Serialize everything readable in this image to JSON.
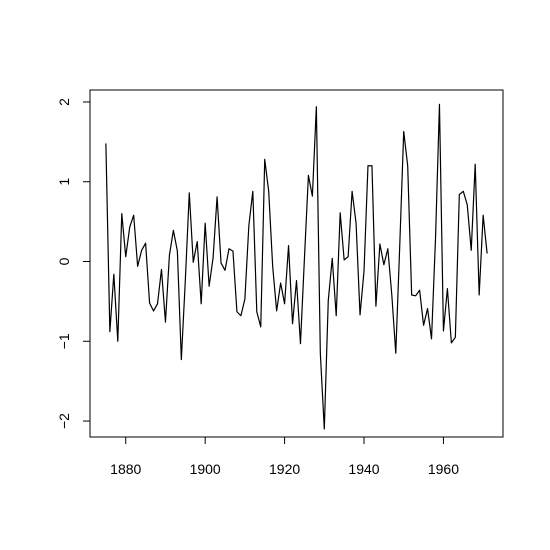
{
  "chart_data": {
    "type": "line",
    "title": "",
    "xlabel": "",
    "ylabel": "",
    "xlim": [
      1871,
      1975
    ],
    "ylim": [
      -2.2,
      2.15
    ],
    "xticks": [
      1880,
      1900,
      1920,
      1940,
      1960
    ],
    "xtick_labels": [
      "1880",
      "1900",
      "1920",
      "1940",
      "1960"
    ],
    "yticks": [
      -2,
      -1,
      0,
      1,
      2
    ],
    "ytick_labels": [
      "−2",
      "−1",
      "0",
      "1",
      "2"
    ],
    "grid": false,
    "legend": "none",
    "line_color": "#000000",
    "series": [
      {
        "x": [
          1875,
          1876,
          1877,
          1878,
          1879,
          1880,
          1881,
          1882,
          1883,
          1884,
          1885,
          1886,
          1887,
          1888,
          1889,
          1890,
          1891,
          1892,
          1893,
          1894,
          1895,
          1896,
          1897,
          1898,
          1899,
          1900,
          1901,
          1902,
          1903,
          1904,
          1905,
          1906,
          1907,
          1908,
          1909,
          1910,
          1911,
          1912,
          1913,
          1914,
          1915,
          1916,
          1917,
          1918,
          1919,
          1920,
          1921,
          1922,
          1923,
          1924,
          1925,
          1926,
          1927,
          1928,
          1929,
          1930,
          1931,
          1932,
          1933,
          1934,
          1935,
          1936,
          1937,
          1938,
          1939,
          1940,
          1941,
          1942,
          1943,
          1944,
          1945,
          1946,
          1947,
          1948,
          1949,
          1950,
          1951,
          1952,
          1953,
          1954,
          1955,
          1956,
          1957,
          1958,
          1959,
          1960,
          1961,
          1962,
          1963,
          1964,
          1965,
          1966,
          1967,
          1968,
          1969,
          1970,
          1971
        ],
        "y": [
          1.48,
          -0.88,
          -0.16,
          -1.0,
          0.6,
          0.06,
          0.43,
          0.58,
          -0.06,
          0.14,
          0.23,
          -0.52,
          -0.62,
          -0.53,
          -0.1,
          -0.76,
          0.08,
          0.39,
          0.13,
          -1.23,
          -0.24,
          0.86,
          -0.01,
          0.25,
          -0.53,
          0.48,
          -0.31,
          0.05,
          0.81,
          -0.02,
          -0.11,
          0.16,
          0.13,
          -0.63,
          -0.68,
          -0.47,
          0.45,
          0.88,
          -0.63,
          -0.82,
          1.28,
          0.88,
          -0.06,
          -0.62,
          -0.27,
          -0.53,
          0.2,
          -0.78,
          -0.24,
          -1.03,
          0.04,
          1.08,
          0.82,
          1.94,
          -1.15,
          -2.1,
          -0.49,
          0.04,
          -0.68,
          0.61,
          0.02,
          0.06,
          0.88,
          0.48,
          -0.67,
          -0.12,
          1.2,
          1.2,
          -0.56,
          0.22,
          -0.04,
          0.16,
          -0.42,
          -1.15,
          0.2,
          1.63,
          1.2,
          -0.42,
          -0.43,
          -0.36,
          -0.8,
          -0.59,
          -0.97,
          0.28,
          1.97,
          -0.87,
          -0.34,
          -1.02,
          -0.95,
          0.84,
          0.88,
          0.71,
          0.14,
          1.22,
          -0.42,
          0.58,
          0.1
        ]
      }
    ]
  }
}
